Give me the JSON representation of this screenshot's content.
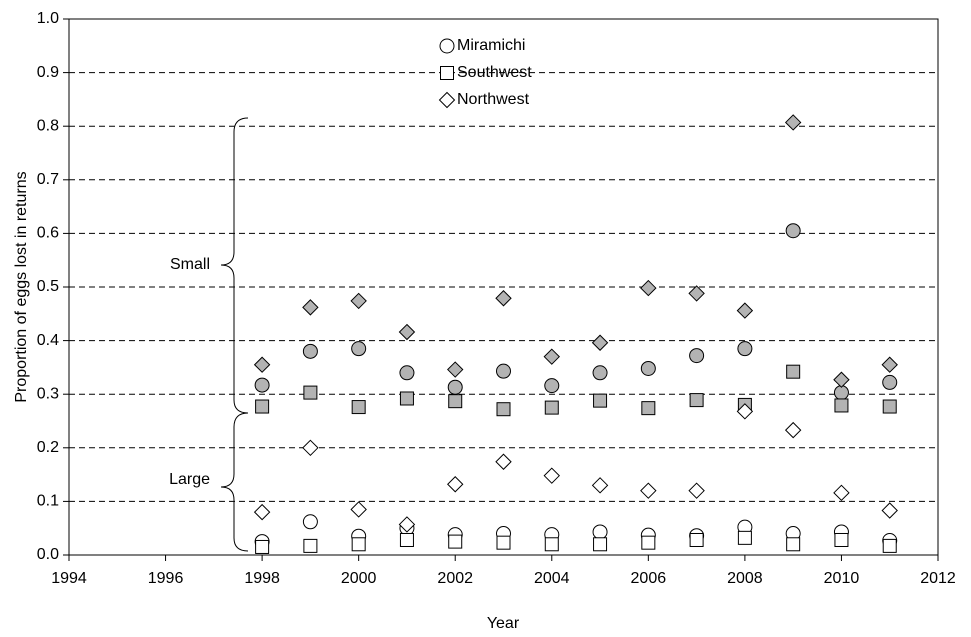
{
  "chart_data": {
    "type": "scatter",
    "xlabel": "Year",
    "ylabel": "Proportion of eggs lost in returns",
    "x": [
      1998,
      1999,
      2000,
      2001,
      2002,
      2003,
      2004,
      2005,
      2006,
      2007,
      2008,
      2009,
      2010,
      2011
    ],
    "xlim": [
      1994,
      2012
    ],
    "xticks": [
      1994,
      1996,
      1998,
      2000,
      2002,
      2004,
      2006,
      2008,
      2010,
      2012
    ],
    "ylim": [
      0,
      1
    ],
    "yticks": [
      {
        "value": 0,
        "label": "0.0"
      },
      {
        "value": 0.1,
        "label": "0.1"
      },
      {
        "value": 0.2,
        "label": "0.2"
      },
      {
        "value": 0.3,
        "label": "0.3"
      },
      {
        "value": 0.4,
        "label": "0.4"
      },
      {
        "value": 0.5,
        "label": "0.5"
      },
      {
        "value": 0.6,
        "label": "0.6"
      },
      {
        "value": 0.7,
        "label": "0.7"
      },
      {
        "value": 0.8,
        "label": "0.8"
      },
      {
        "value": 0.9,
        "label": "0.9"
      },
      {
        "value": 1,
        "label": "1.0"
      }
    ],
    "grid": true,
    "size_groups": [
      {
        "label": "Small",
        "color": "#b3b3b3"
      },
      {
        "label": "Large",
        "color": "#ffffff"
      }
    ],
    "series": [
      {
        "name": "Miramichi",
        "marker": "circle",
        "small": [
          0.317,
          0.38,
          0.385,
          0.34,
          0.313,
          0.343,
          0.316,
          0.34,
          0.348,
          0.372,
          0.385,
          0.605,
          0.303,
          0.322
        ],
        "large": [
          0.025,
          0.062,
          0.035,
          0.05,
          0.038,
          0.04,
          0.038,
          0.043,
          0.037,
          0.036,
          0.052,
          0.04,
          0.043,
          0.027
        ]
      },
      {
        "name": "Southwest",
        "marker": "square",
        "small": [
          0.277,
          0.303,
          0.276,
          0.292,
          0.287,
          0.272,
          0.275,
          0.288,
          0.274,
          0.289,
          0.28,
          0.342,
          0.279,
          0.277
        ],
        "large": [
          0.015,
          0.017,
          0.02,
          0.028,
          0.025,
          0.023,
          0.02,
          0.02,
          0.023,
          0.028,
          0.032,
          0.02,
          0.028,
          0.017
        ]
      },
      {
        "name": "Northwest",
        "marker": "diamond",
        "small": [
          0.355,
          0.462,
          0.474,
          0.416,
          0.346,
          0.479,
          0.37,
          0.396,
          0.498,
          0.488,
          0.456,
          0.807,
          0.327,
          0.355
        ],
        "large": [
          0.08,
          0.2,
          0.085,
          0.057,
          0.132,
          0.174,
          0.148,
          0.13,
          0.12,
          0.12,
          0.268,
          0.233,
          0.116,
          0.083
        ]
      }
    ]
  }
}
